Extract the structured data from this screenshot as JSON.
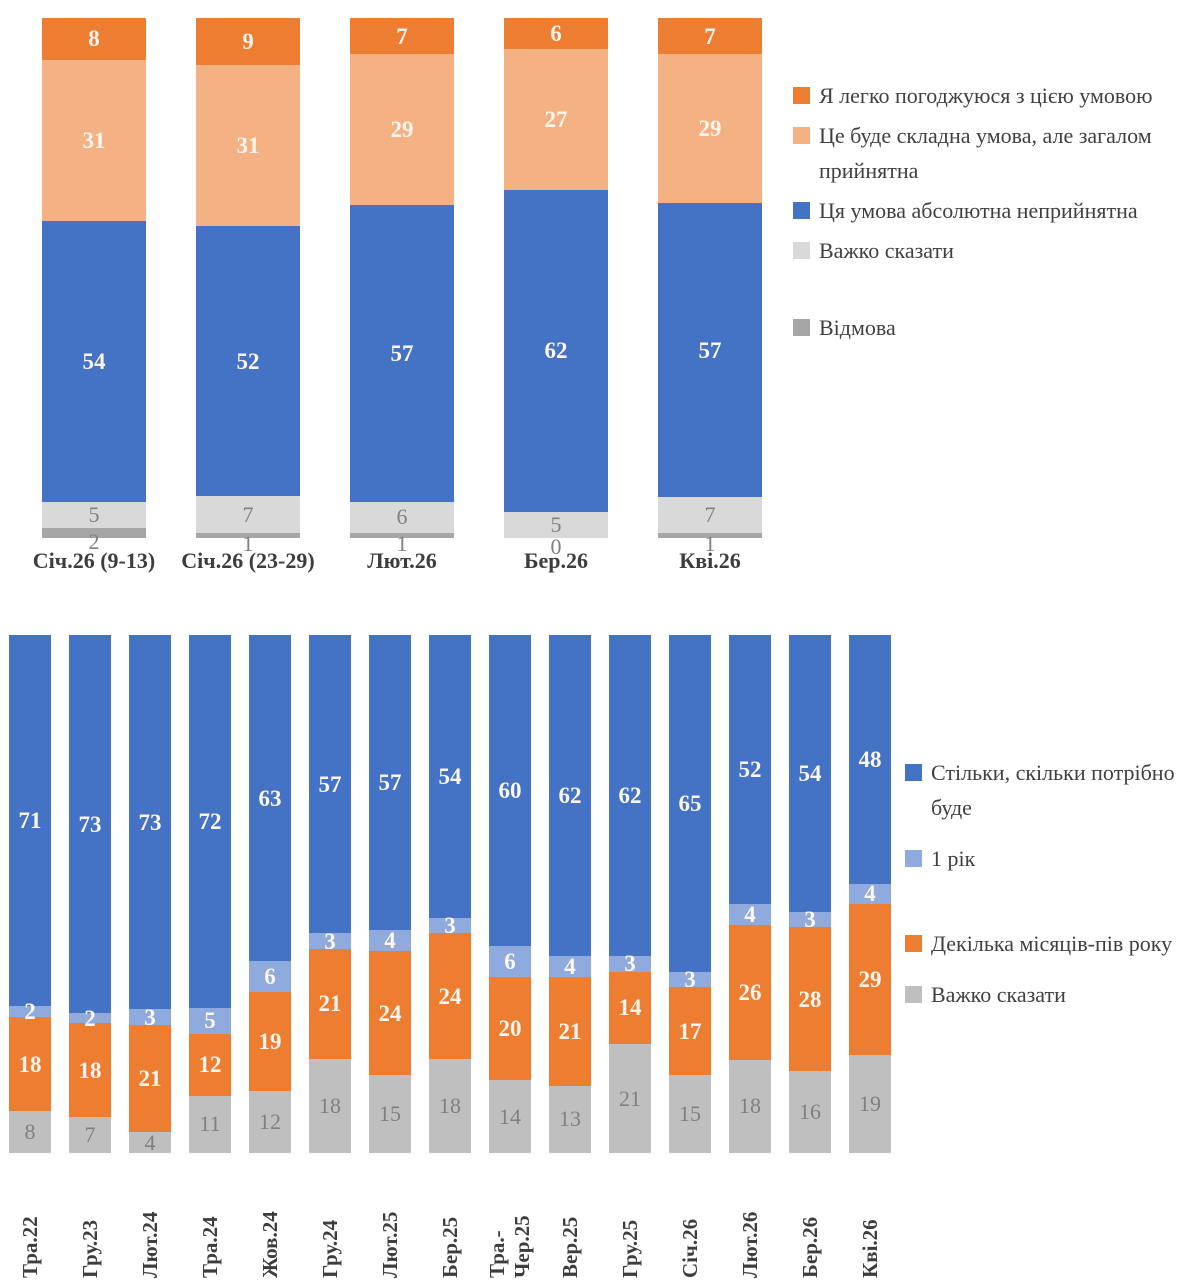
{
  "colors": {
    "orange": "#ED7D31",
    "peach": "#F4B183",
    "blue": "#4472C4",
    "light_blue": "#8FAADC",
    "light_gray": "#D9D9D9",
    "mid_gray": "#A6A6A6",
    "bar_gray": "#BFBFBF",
    "white_value_text": "#FCF6EE",
    "gray_value_text": "#808080",
    "axis_label_text": "#3D3D3D",
    "legend_text": "#404040"
  },
  "chart_data": [
    {
      "type": "bar",
      "stacked": true,
      "percent_scale": true,
      "ylim": [
        0,
        100
      ],
      "grid": false,
      "legend_position": "right",
      "title": "",
      "xlabel": "",
      "ylabel": "",
      "categories": [
        "Січ.26 (9-13)",
        "Січ.26 (23-29)",
        "Лют.26",
        "Бер.26",
        "Кві.26"
      ],
      "series": [
        {
          "name": "Я легко погоджуюся з цією умовою",
          "color": "#ED7D31",
          "label_style": "white",
          "values": [
            8,
            9,
            7,
            6,
            7
          ]
        },
        {
          "name": "Це буде складна умова, але загалом прийнятна",
          "color": "#F4B183",
          "label_style": "white",
          "values": [
            31,
            31,
            29,
            27,
            29
          ]
        },
        {
          "name": "Ця умова абсолютна неприйнятна",
          "color": "#4472C4",
          "label_style": "white",
          "values": [
            54,
            52,
            57,
            62,
            57
          ]
        },
        {
          "name": "Важко сказати",
          "color": "#D9D9D9",
          "label_style": "gray",
          "values": [
            5,
            7,
            6,
            5,
            7
          ]
        },
        {
          "name": "Відмова",
          "color": "#A6A6A6",
          "label_style": "gray",
          "values": [
            2,
            1,
            1,
            0,
            1
          ]
        }
      ]
    },
    {
      "type": "bar",
      "stacked": true,
      "percent_scale": true,
      "ylim": [
        0,
        100
      ],
      "grid": false,
      "legend_position": "right",
      "title": "",
      "xlabel": "",
      "ylabel": "",
      "categories": [
        "Тра.22",
        "Гру.23",
        "Лют.24",
        "Тра.24",
        "Жов.24",
        "Гру.24",
        "Лют.25",
        "Бер.25",
        "Тра.-\nЧер.25",
        "Вер.25",
        "Гру.25",
        "Січ.26",
        "Лют.26",
        "Бер.26",
        "Кві.26"
      ],
      "series": [
        {
          "name": "Стільки, скільки потрібно буде",
          "color": "#4472C4",
          "label_style": "white",
          "values": [
            71,
            73,
            73,
            72,
            63,
            57,
            57,
            54,
            60,
            62,
            62,
            65,
            52,
            54,
            48
          ]
        },
        {
          "name": "1 рік",
          "color": "#8FAADC",
          "label_style": "white",
          "values": [
            2,
            2,
            3,
            5,
            6,
            3,
            4,
            3,
            6,
            4,
            3,
            3,
            4,
            3,
            4
          ]
        },
        {
          "name": "Декілька місяців-пів року",
          "color": "#ED7D31",
          "label_style": "white",
          "values": [
            18,
            18,
            21,
            12,
            19,
            21,
            24,
            24,
            20,
            21,
            14,
            17,
            26,
            28,
            29
          ]
        },
        {
          "name": "Важко сказати",
          "color": "#BFBFBF",
          "label_style": "gray",
          "values": [
            8,
            7,
            4,
            11,
            12,
            18,
            15,
            18,
            14,
            13,
            21,
            15,
            18,
            16,
            19
          ]
        }
      ]
    }
  ]
}
